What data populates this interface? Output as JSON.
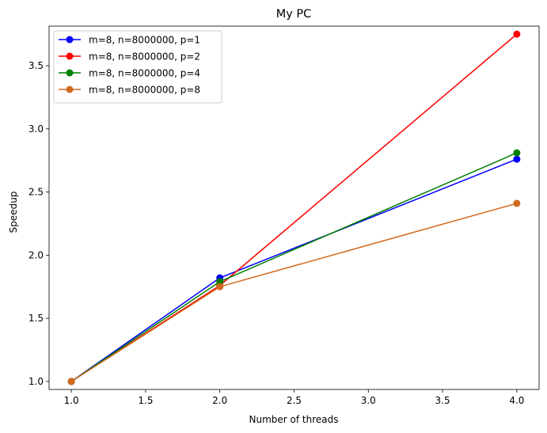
{
  "chart_data": {
    "type": "line",
    "title": "My PC",
    "xlabel": "Number of threads",
    "ylabel": "Speedup",
    "x": [
      1,
      2,
      4
    ],
    "xlim": [
      0.85,
      4.15
    ],
    "ylim": [
      0.9365,
      3.8135
    ],
    "xticks": [
      1.0,
      1.5,
      2.0,
      2.5,
      3.0,
      3.5,
      4.0
    ],
    "xtick_labels": [
      "1.0",
      "1.5",
      "2.0",
      "2.5",
      "3.0",
      "3.5",
      "4.0"
    ],
    "yticks": [
      1.0,
      1.5,
      2.0,
      2.5,
      3.0,
      3.5
    ],
    "ytick_labels": [
      "1.0",
      "1.5",
      "2.0",
      "2.5",
      "3.0",
      "3.5"
    ],
    "grid": false,
    "legend_position": "top-left",
    "series": [
      {
        "name": "m=8, n=8000000, p=1",
        "color": "#0000ff",
        "values": [
          1.0,
          1.82,
          2.76
        ]
      },
      {
        "name": "m=8, n=8000000, p=2",
        "color": "#ff0000",
        "values": [
          1.0,
          1.76,
          3.75
        ]
      },
      {
        "name": "m=8, n=8000000, p=4",
        "color": "#008000",
        "values": [
          1.0,
          1.79,
          2.81
        ]
      },
      {
        "name": "m=8, n=8000000, p=8",
        "color": "#d2691e",
        "values": [
          1.0,
          1.75,
          2.41
        ]
      }
    ]
  }
}
